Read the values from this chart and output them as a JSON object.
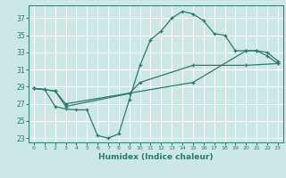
{
  "title": "",
  "xlabel": "Humidex (Indice chaleur)",
  "background_color": "#cce8e4",
  "grid_color": "#ffffff",
  "line_color": "#2d7a6a",
  "xlim": [
    -0.5,
    23.5
  ],
  "ylim": [
    22.5,
    38.5
  ],
  "xticks": [
    0,
    1,
    2,
    3,
    4,
    5,
    6,
    7,
    8,
    9,
    10,
    11,
    12,
    13,
    14,
    15,
    16,
    17,
    18,
    19,
    20,
    21,
    22,
    23
  ],
  "yticks": [
    23,
    25,
    27,
    29,
    31,
    33,
    35,
    37
  ],
  "line1_x": [
    0,
    1,
    2,
    3,
    4,
    5,
    6,
    7,
    8,
    9,
    10,
    11,
    12,
    13,
    14,
    15,
    16,
    17,
    18,
    19,
    20,
    21,
    22,
    23
  ],
  "line1_y": [
    28.8,
    28.7,
    26.7,
    26.4,
    26.3,
    26.3,
    23.3,
    23.0,
    23.5,
    27.5,
    31.5,
    34.5,
    35.5,
    37.0,
    37.8,
    37.5,
    36.7,
    35.2,
    35.0,
    33.2,
    33.2,
    33.2,
    32.6,
    31.7
  ],
  "line2_x": [
    0,
    2,
    3,
    15,
    20,
    21,
    22,
    23
  ],
  "line2_y": [
    28.8,
    28.5,
    27.0,
    29.5,
    33.2,
    33.2,
    33.0,
    32.0
  ],
  "line3_x": [
    0,
    2,
    3,
    9,
    10,
    15,
    20,
    23
  ],
  "line3_y": [
    28.8,
    28.5,
    26.7,
    28.2,
    29.5,
    31.5,
    31.5,
    31.7
  ]
}
